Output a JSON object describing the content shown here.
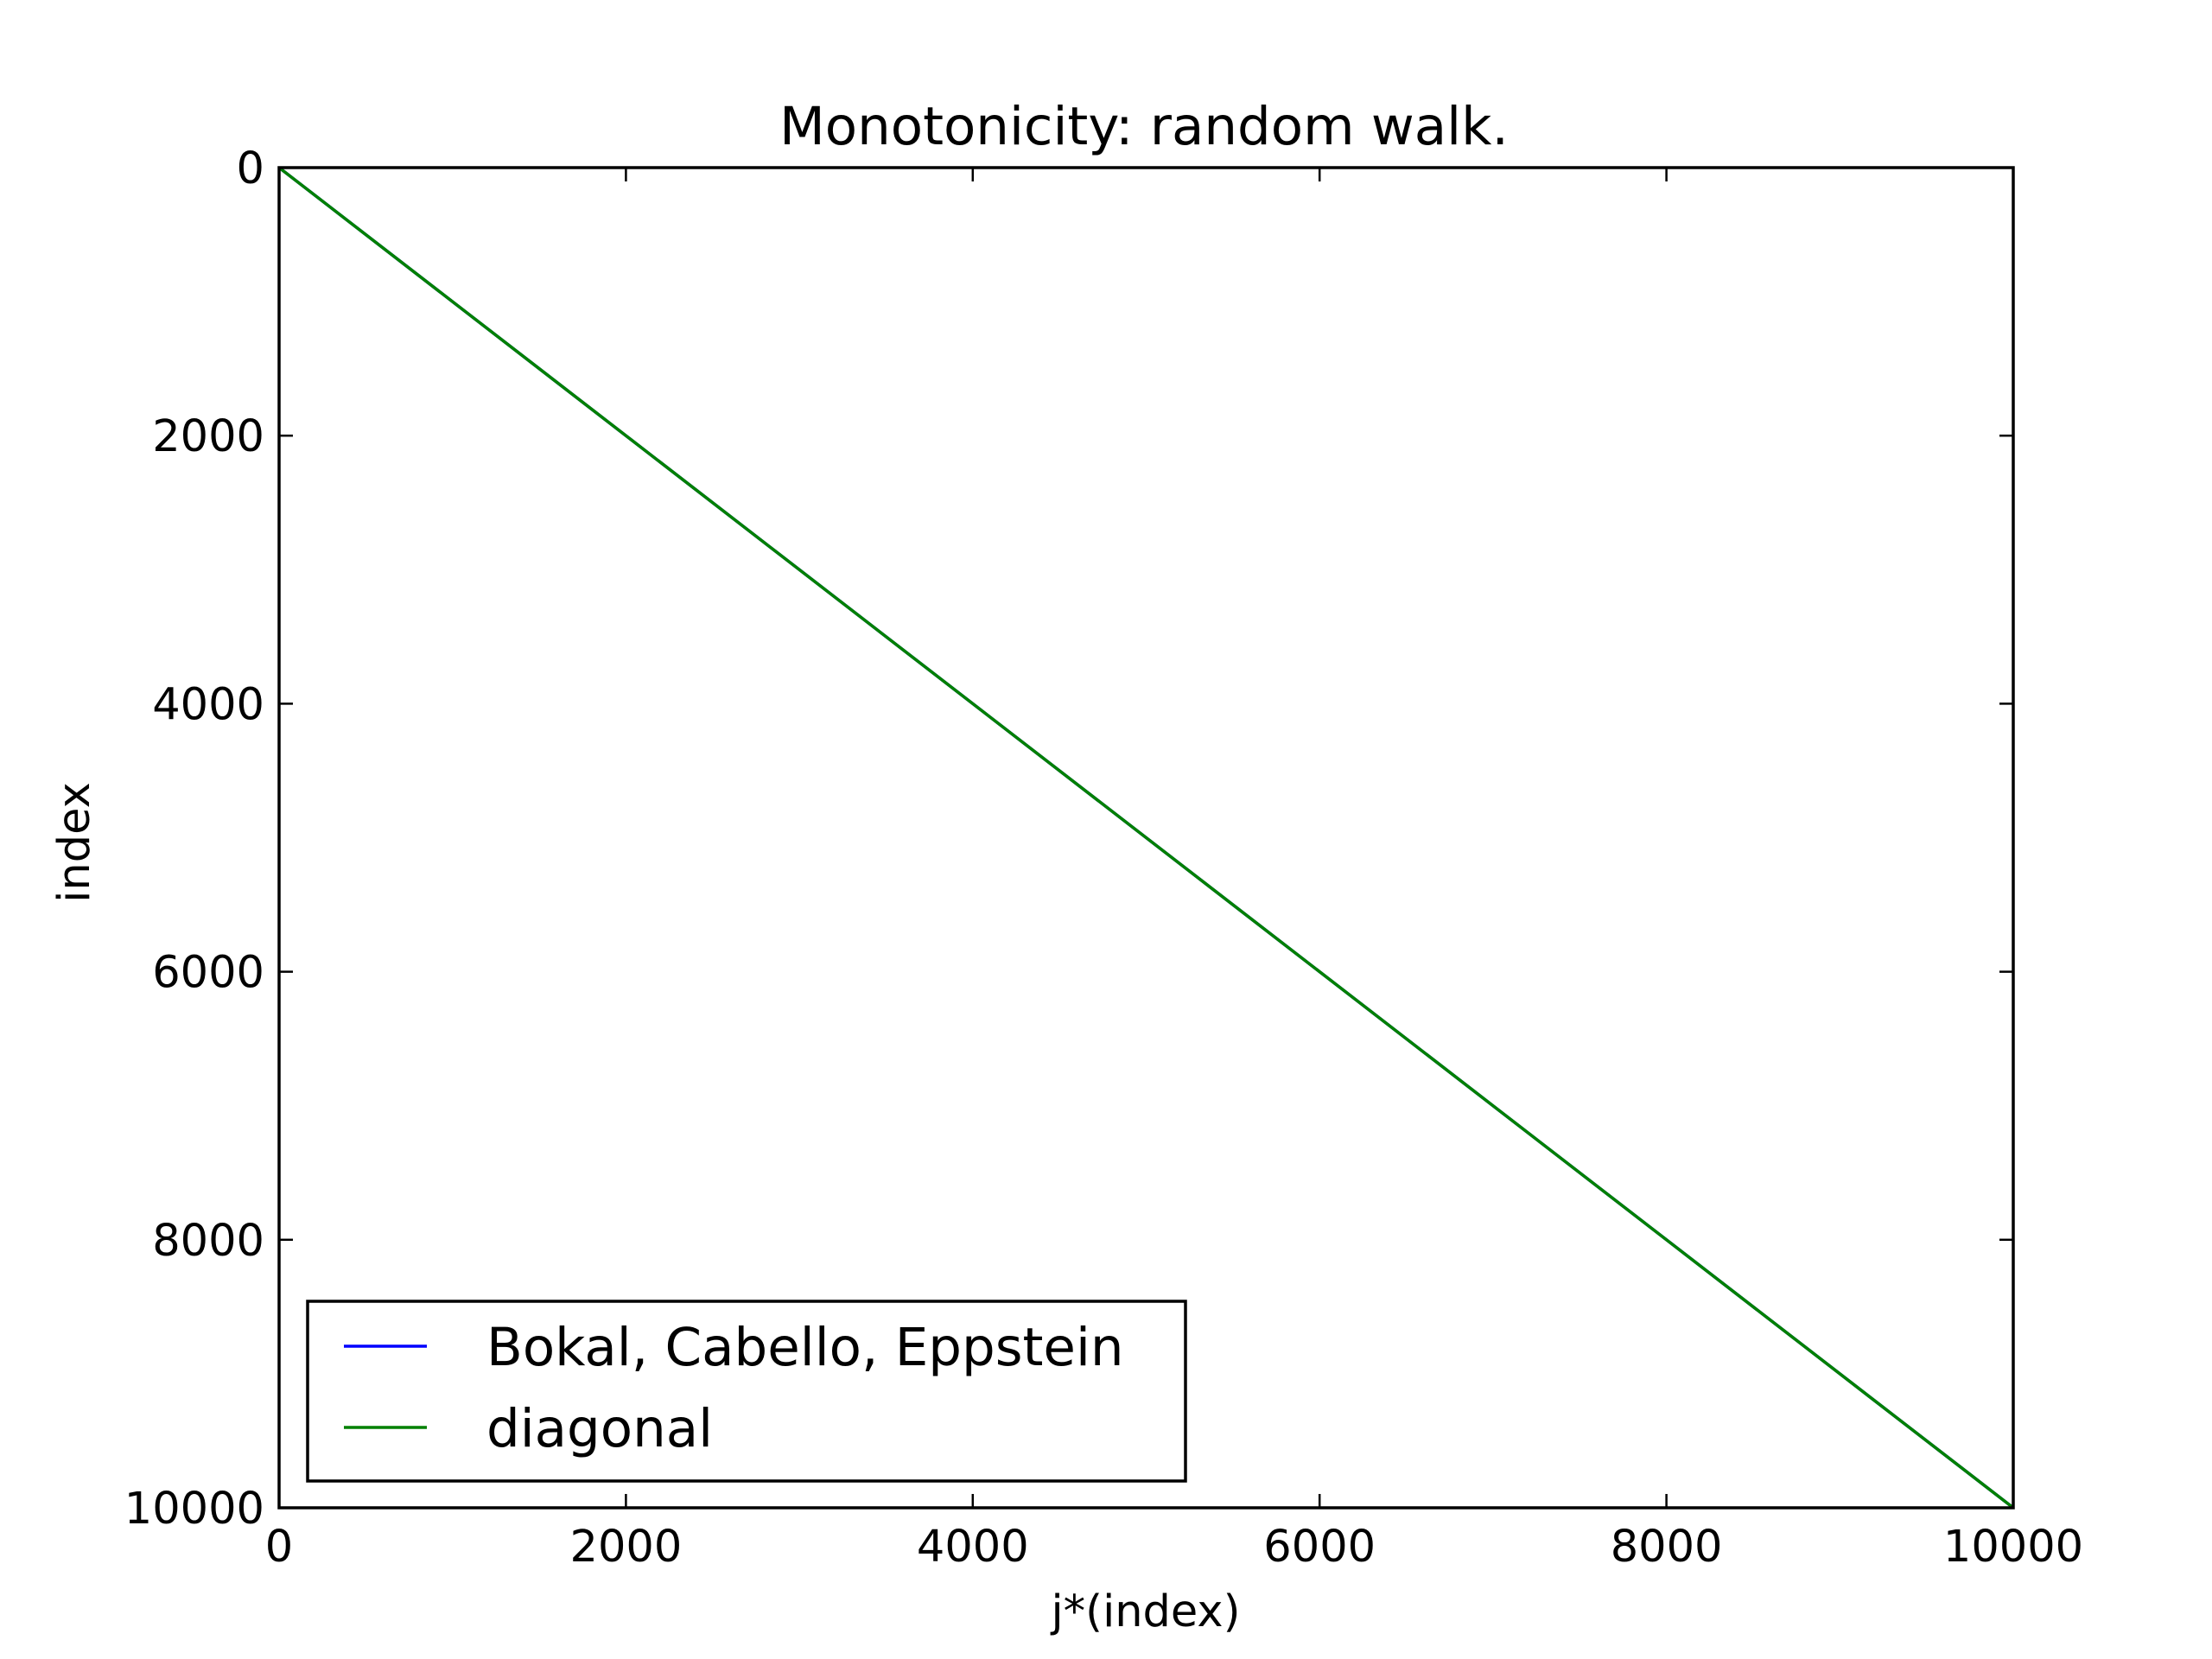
{
  "chart_data": {
    "type": "line",
    "title": "Monotonicity: random walk.",
    "xlabel": "j*(index)",
    "ylabel": "index",
    "xlim": [
      0,
      10000
    ],
    "ylim": [
      0,
      10000
    ],
    "y_inverted": true,
    "xticks": [
      0,
      2000,
      4000,
      6000,
      8000,
      10000
    ],
    "yticks": [
      0,
      2000,
      4000,
      6000,
      8000,
      10000
    ],
    "xtick_labels": [
      "0",
      "2000",
      "4000",
      "6000",
      "8000",
      "10000"
    ],
    "ytick_labels": [
      "0",
      "2000",
      "4000",
      "6000",
      "8000",
      "10000"
    ],
    "grid": false,
    "legend_position": "lower-left",
    "series": [
      {
        "name": "Bokal, Cabello, Eppstein",
        "color": "#0000ff",
        "x": [
          0,
          1000,
          2000,
          3000,
          4000,
          5000,
          6000,
          7000,
          8000,
          9000,
          10000
        ],
        "y": [
          0,
          1000,
          2000,
          3000,
          4000,
          5000,
          6000,
          7000,
          8000,
          9000,
          10000
        ]
      },
      {
        "name": "diagonal",
        "color": "#008000",
        "x": [
          0,
          10000
        ],
        "y": [
          0,
          10000
        ]
      }
    ]
  }
}
